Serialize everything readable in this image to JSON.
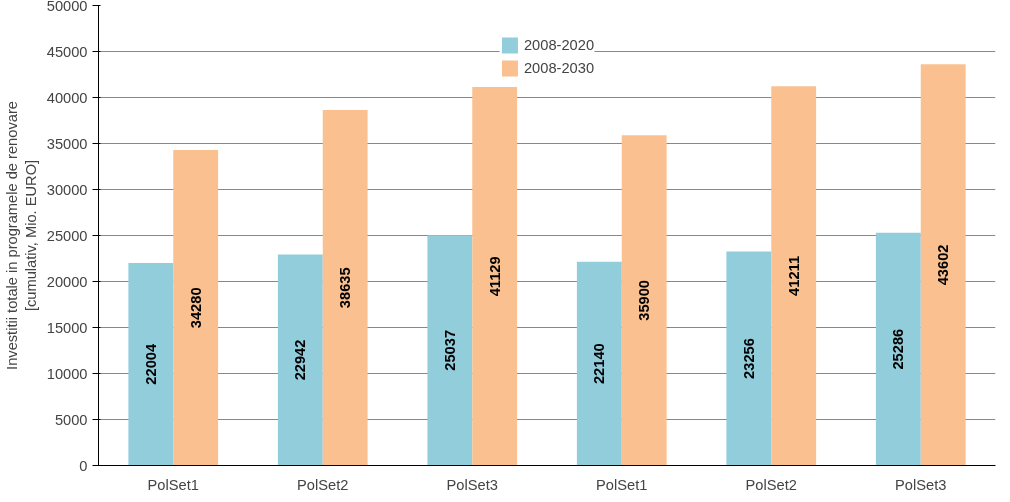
{
  "chart_data": {
    "type": "bar",
    "ylabel": "Investitii totale in programele de renovare\n[cumulativ, Mio. EURO]",
    "categories": [
      "PolSet1",
      "PolSet2",
      "PolSet3",
      "PolSet1",
      "PolSet2",
      "PolSet3"
    ],
    "series": [
      {
        "name": "2008-2020",
        "color": "#92cddc",
        "values": [
          22004,
          22942,
          25037,
          22140,
          23256,
          25286
        ]
      },
      {
        "name": "2008-2030",
        "color": "#fac090",
        "values": [
          34280,
          38635,
          41129,
          35900,
          41211,
          43602
        ]
      }
    ],
    "ylim": [
      0,
      50000
    ],
    "yticks": [
      0,
      5000,
      10000,
      15000,
      20000,
      25000,
      30000,
      35000,
      40000,
      45000,
      50000
    ],
    "grid": "y",
    "legend": "top",
    "data_labels": true
  }
}
